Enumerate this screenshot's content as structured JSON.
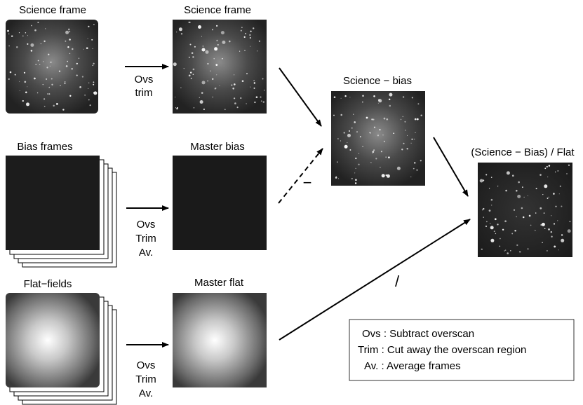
{
  "nodes": [
    {
      "label": "Science frame"
    },
    {
      "label": "Science frame"
    },
    {
      "label": "Bias frames"
    },
    {
      "label": "Master bias"
    },
    {
      "label": "Flat−fields"
    },
    {
      "label": "Master flat"
    },
    {
      "label": "Science − bias"
    },
    {
      "label": "(Science − Bias) / Flat"
    }
  ],
  "edges": [
    {
      "label": [
        "Ovs",
        "trim"
      ]
    },
    {
      "label": [
        "Ovs",
        "Trim",
        "Av."
      ]
    },
    {
      "label": [
        "Ovs",
        "Trim",
        "Av."
      ]
    },
    {
      "label": "−"
    },
    {
      "label": "/"
    }
  ],
  "legend": [
    "Ovs : Subtract overscan",
    "Trim : Cut away the overscan region",
    "Av. : Average frames"
  ]
}
